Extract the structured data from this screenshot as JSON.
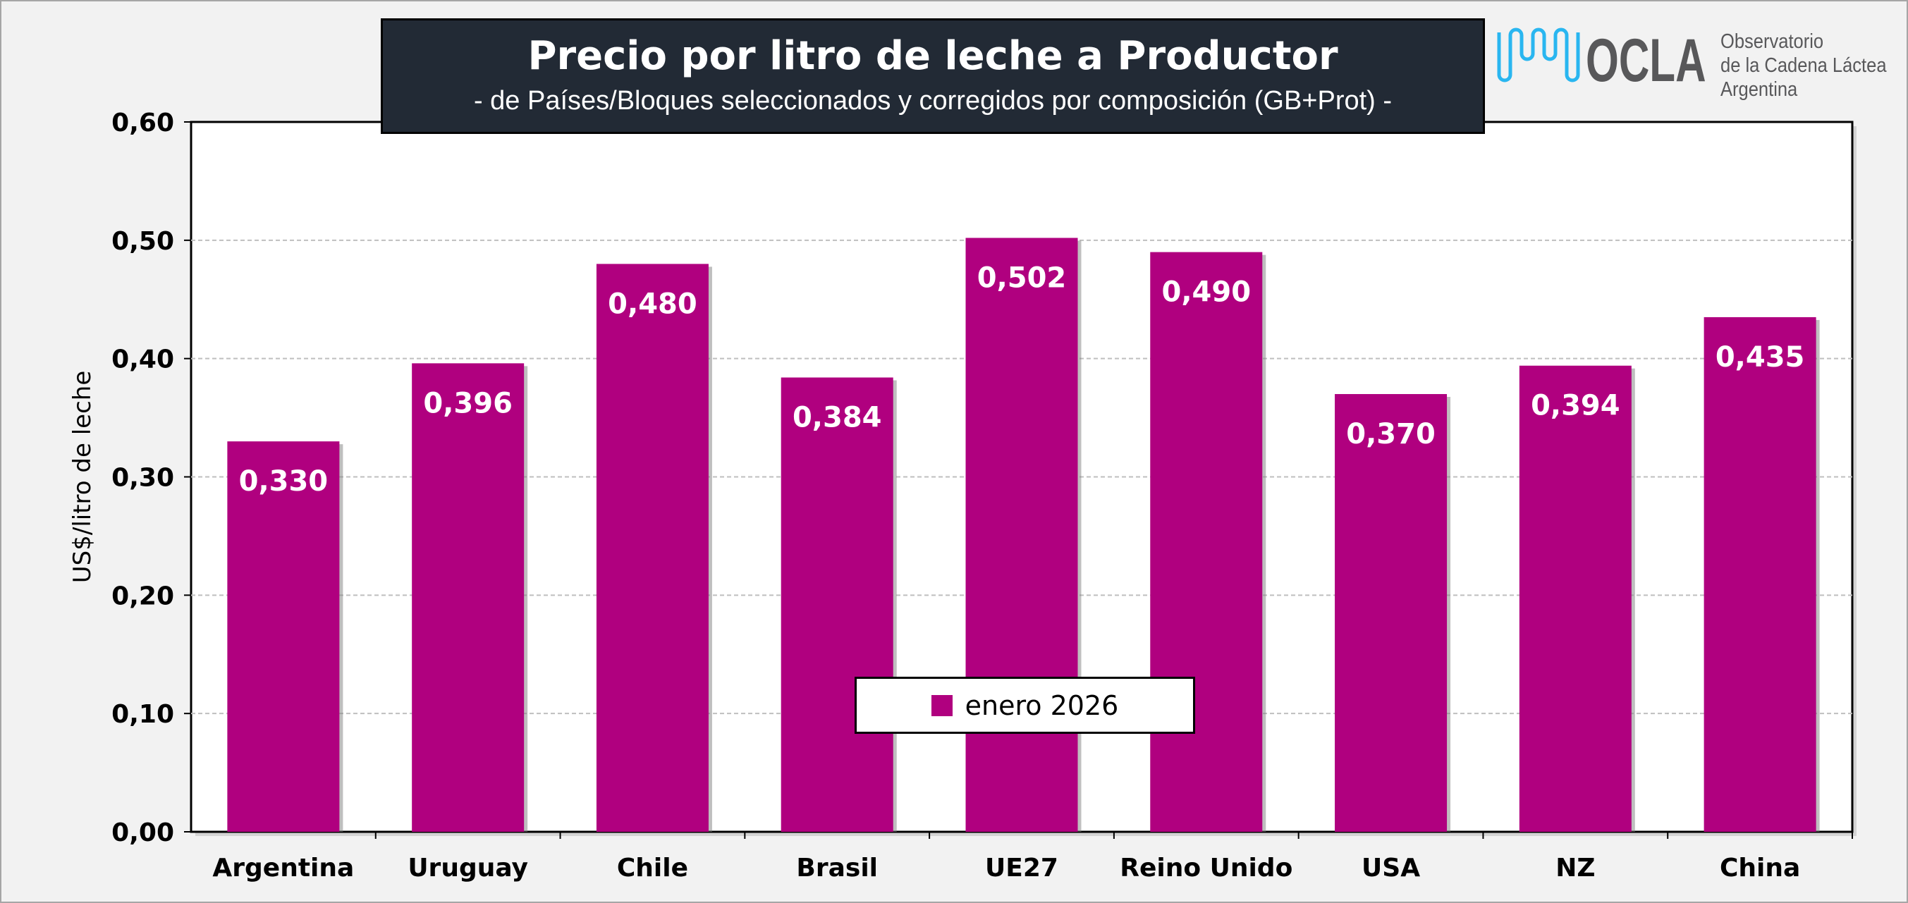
{
  "title": "Precio por litro de leche a Productor",
  "subtitle": "-  de Países/Bloques seleccionados y corregidos por composición (GB+Prot) -",
  "logo": {
    "name": "OCLA",
    "line1": "Observatorio",
    "line2": "de la Cadena Láctea",
    "line3": "Argentina"
  },
  "colors": {
    "bar": "#b0007f",
    "title_bg": "#222a35"
  },
  "chart_data": {
    "type": "bar",
    "title": "Precio por litro de leche a Productor",
    "subtitle": "-  de Países/Bloques seleccionados y corregidos por composición (GB+Prot) -",
    "xlabel": "",
    "ylabel": "US$/litro de leche",
    "ylim": [
      0,
      0.6
    ],
    "yticks": [
      "0,00",
      "0,10",
      "0,20",
      "0,30",
      "0,40",
      "0,50",
      "0,60"
    ],
    "grid": true,
    "legend_position": "bottom-center",
    "categories": [
      "Argentina",
      "Uruguay",
      "Chile",
      "Brasil",
      "UE27",
      "Reino Unido",
      "USA",
      "NZ",
      "China"
    ],
    "series": [
      {
        "name": "enero 2026",
        "values": [
          0.33,
          0.396,
          0.48,
          0.384,
          0.502,
          0.49,
          0.37,
          0.394,
          0.435
        ],
        "labels": [
          "0,330",
          "0,396",
          "0,480",
          "0,384",
          "0,502",
          "0,490",
          "0,370",
          "0,394",
          "0,435"
        ]
      }
    ]
  }
}
